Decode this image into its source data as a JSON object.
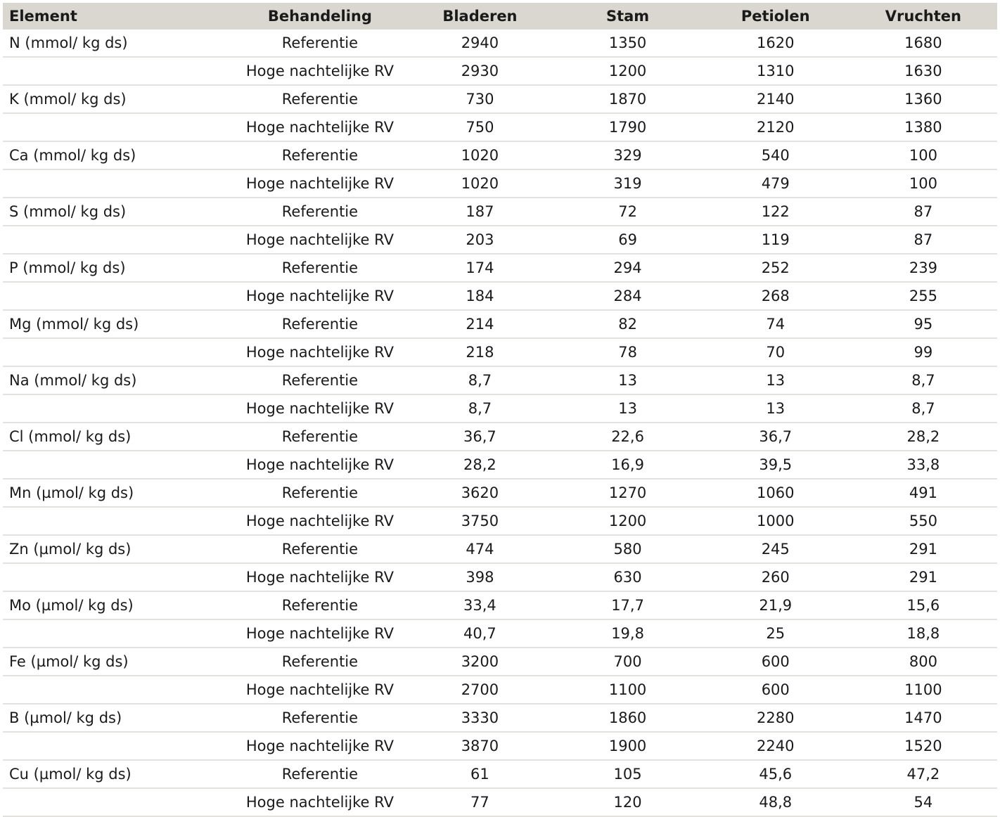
{
  "table": {
    "headers": [
      "Element",
      "Behandeling",
      "Bladeren",
      "Stam",
      "Petiolen",
      "Vruchten"
    ],
    "rows": [
      [
        "N (mmol/ kg ds)",
        "Referentie",
        "2940",
        "1350",
        "1620",
        "1680"
      ],
      [
        "",
        "Hoge nachtelijke RV",
        "2930",
        "1200",
        "1310",
        "1630"
      ],
      [
        "K (mmol/ kg ds)",
        "Referentie",
        "730",
        "1870",
        "2140",
        "1360"
      ],
      [
        "",
        "Hoge nachtelijke RV",
        "750",
        "1790",
        "2120",
        "1380"
      ],
      [
        "Ca (mmol/ kg ds)",
        "Referentie",
        "1020",
        "329",
        "540",
        "100"
      ],
      [
        "",
        "Hoge nachtelijke RV",
        "1020",
        "319",
        "479",
        "100"
      ],
      [
        "S (mmol/ kg ds)",
        "Referentie",
        "187",
        "72",
        "122",
        "87"
      ],
      [
        "",
        "Hoge nachtelijke RV",
        "203",
        "69",
        "119",
        "87"
      ],
      [
        "P (mmol/ kg ds)",
        "Referentie",
        "174",
        "294",
        "252",
        "239"
      ],
      [
        "",
        "Hoge nachtelijke RV",
        "184",
        "284",
        "268",
        "255"
      ],
      [
        "Mg (mmol/ kg ds)",
        "Referentie",
        "214",
        "82",
        "74",
        "95"
      ],
      [
        "",
        "Hoge nachtelijke RV",
        "218",
        "78",
        "70",
        "99"
      ],
      [
        "Na (mmol/ kg ds)",
        "Referentie",
        "8,7",
        "13",
        "13",
        "8,7"
      ],
      [
        "",
        "Hoge nachtelijke RV",
        "8,7",
        "13",
        "13",
        "8,7"
      ],
      [
        "Cl (mmol/ kg ds)",
        "Referentie",
        "36,7",
        "22,6",
        "36,7",
        "28,2"
      ],
      [
        "",
        "Hoge nachtelijke RV",
        "28,2",
        "16,9",
        "39,5",
        "33,8"
      ],
      [
        "Mn (µmol/ kg ds)",
        "Referentie",
        "3620",
        "1270",
        "1060",
        "491"
      ],
      [
        "",
        "Hoge nachtelijke RV",
        "3750",
        "1200",
        "1000",
        "550"
      ],
      [
        "Zn (µmol/ kg ds)",
        "Referentie",
        "474",
        "580",
        "245",
        "291"
      ],
      [
        "",
        "Hoge nachtelijke RV",
        "398",
        "630",
        "260",
        "291"
      ],
      [
        "Mo (µmol/ kg ds)",
        "Referentie",
        "33,4",
        "17,7",
        "21,9",
        "15,6"
      ],
      [
        "",
        "Hoge nachtelijke RV",
        "40,7",
        "19,8",
        "25",
        "18,8"
      ],
      [
        "Fe (µmol/ kg ds)",
        "Referentie",
        "3200",
        "700",
        "600",
        "800"
      ],
      [
        "",
        "Hoge nachtelijke RV",
        "2700",
        "1100",
        "600",
        "1100"
      ],
      [
        "B (µmol/ kg ds)",
        "Referentie",
        "3330",
        "1860",
        "2280",
        "1470"
      ],
      [
        "",
        "Hoge nachtelijke RV",
        "3870",
        "1900",
        "2240",
        "1520"
      ],
      [
        "Cu (µmol/ kg ds)",
        "Referentie",
        "61",
        "105",
        "45,6",
        "47,2"
      ],
      [
        "",
        "Hoge nachtelijke RV",
        "77",
        "120",
        "48,8",
        "54"
      ]
    ]
  }
}
